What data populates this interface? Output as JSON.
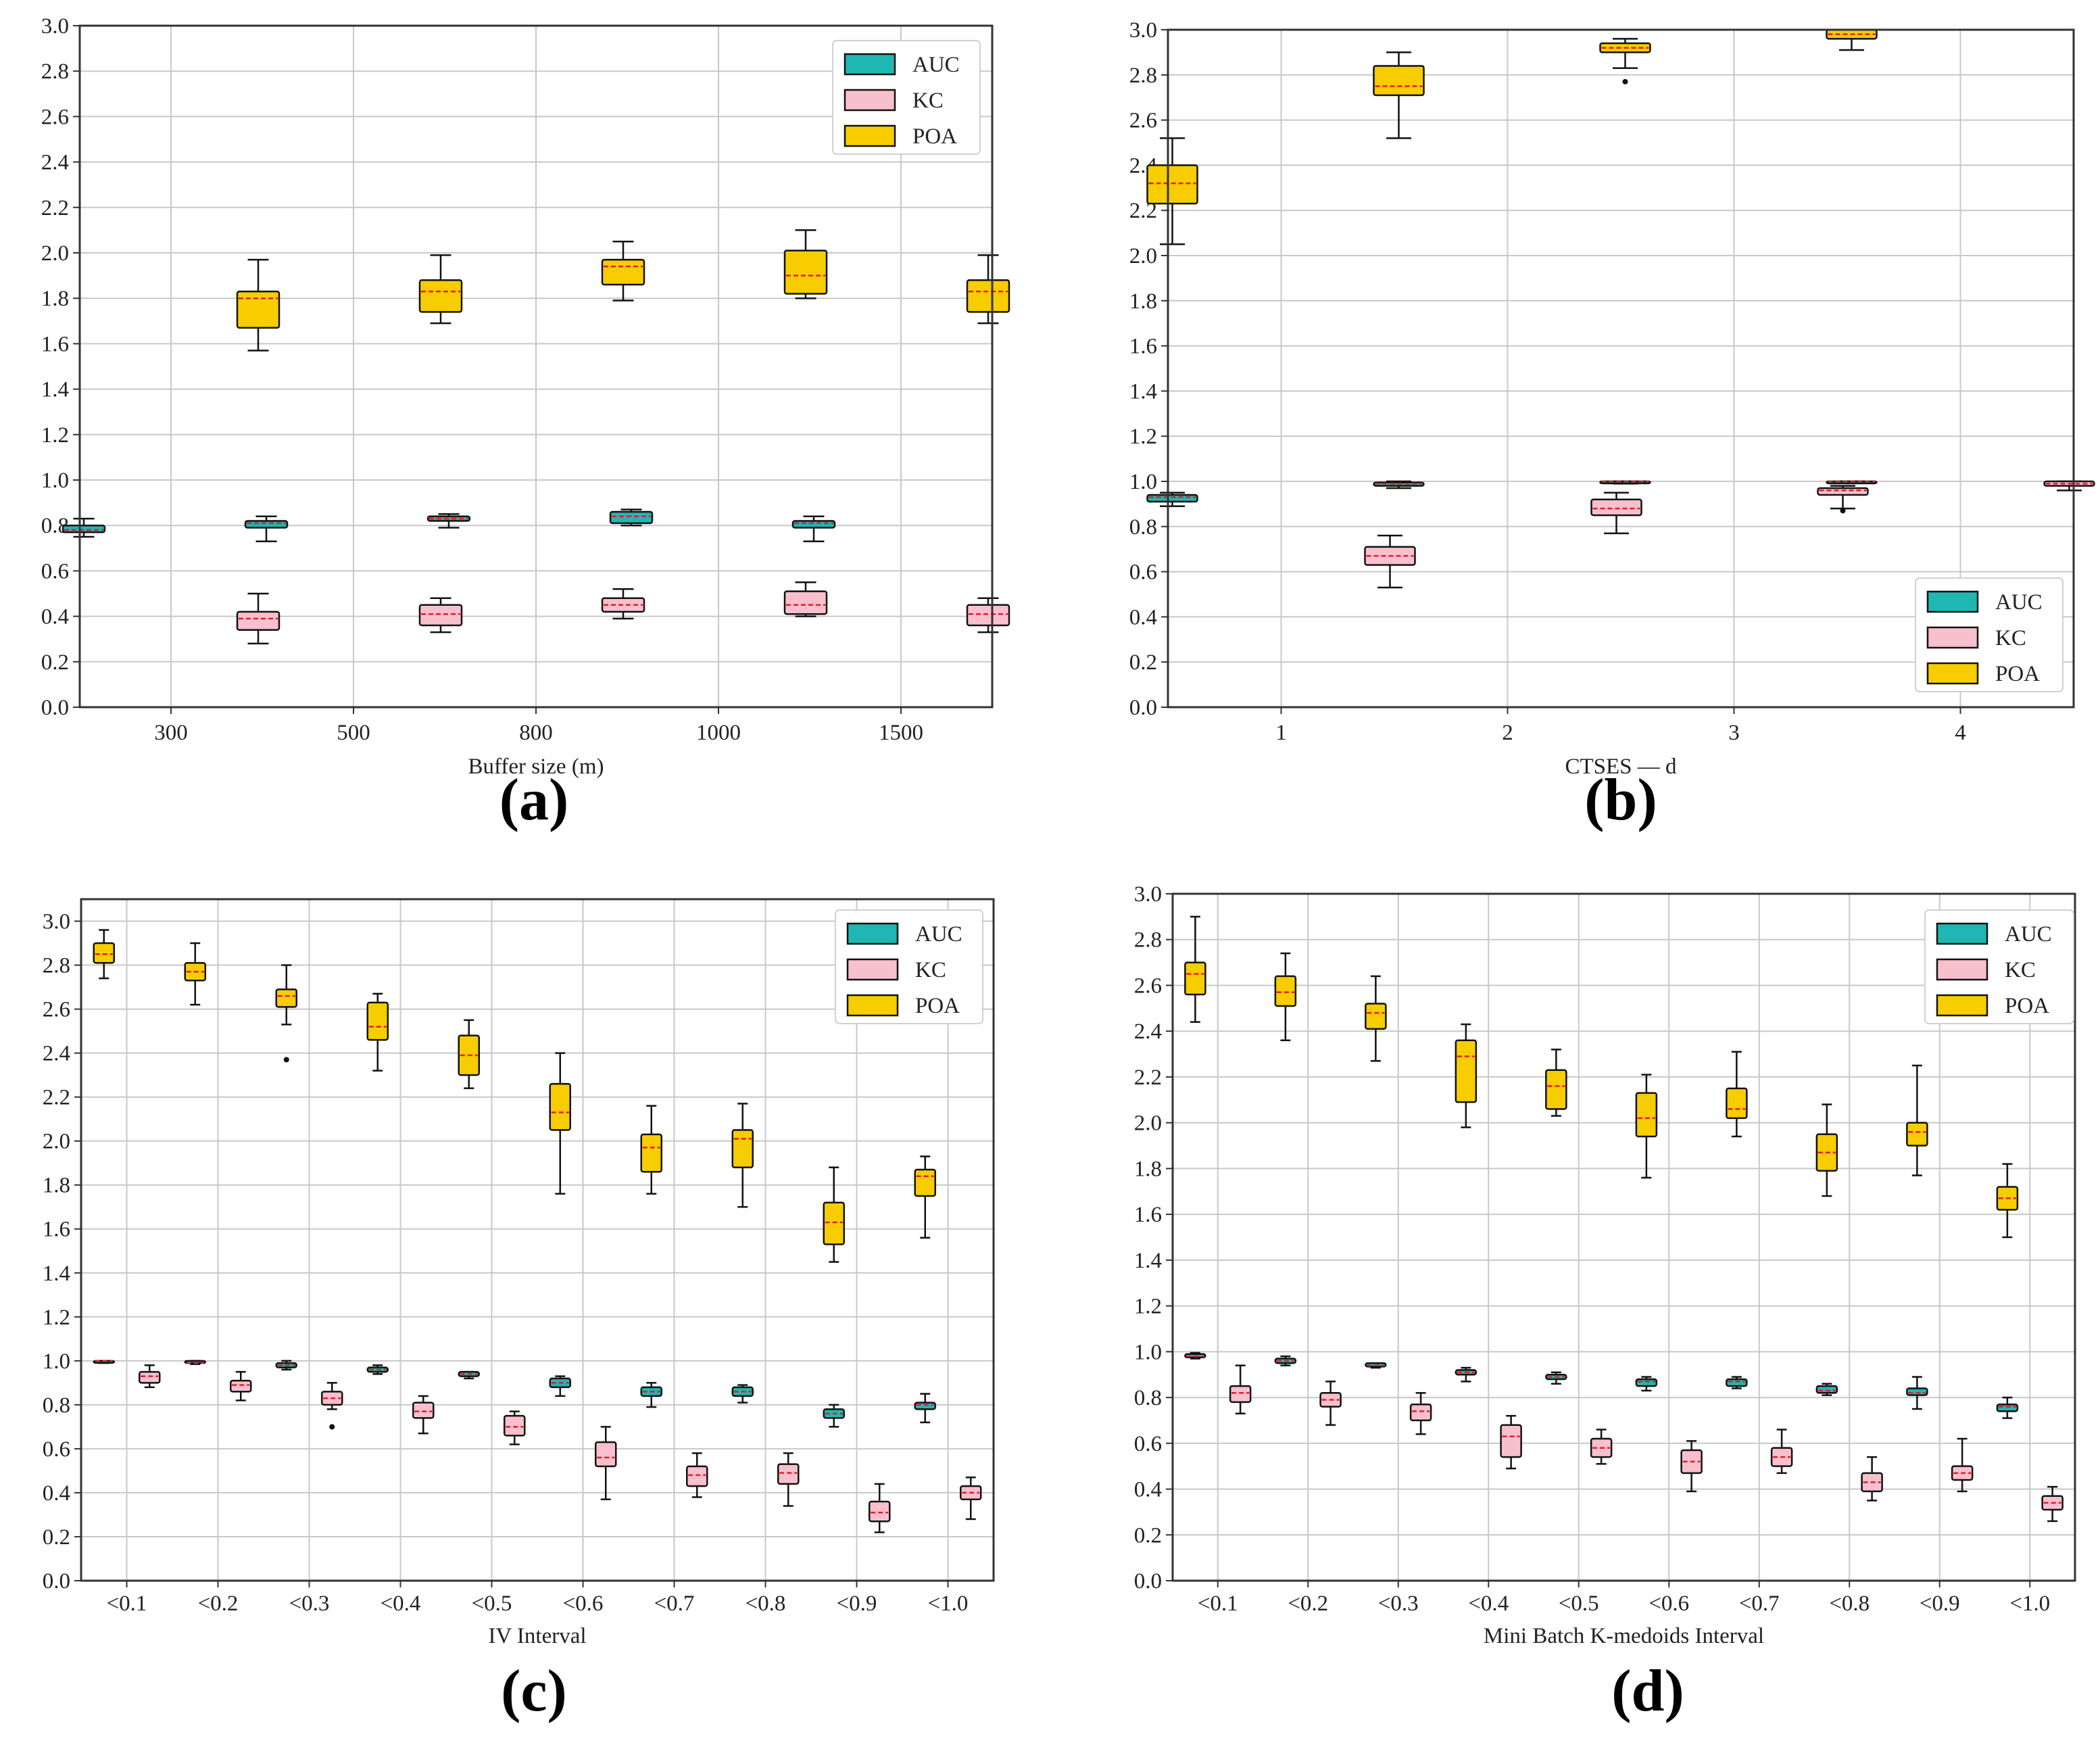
{
  "colors": {
    "AUC": "#1fb7b1",
    "KC": "#f8c0cc",
    "POA": "#f7cd00",
    "median": "#e8182c",
    "grid": "#c8c8c8"
  },
  "chart_data": [
    {
      "panel": "(a)",
      "type": "box",
      "xlabel": "Buffer size  (m)",
      "ylabel": "",
      "ylim": [
        0,
        3.0
      ],
      "yticks": [
        "0.0",
        "0.2",
        "0.4",
        "0.6",
        "0.8",
        "1.0",
        "1.2",
        "1.4",
        "1.6",
        "1.8",
        "2.0",
        "2.2",
        "2.4",
        "2.6",
        "2.8",
        "3.0"
      ],
      "categories": [
        "300",
        "500",
        "800",
        "1000",
        "1500"
      ],
      "grid": true,
      "legend_position": "top-right",
      "legend": [
        "AUC",
        "KC",
        "POA"
      ],
      "series": [
        {
          "name": "AUC",
          "boxes": [
            {
              "lo": 0.75,
              "q1": 0.77,
              "med": 0.78,
              "q3": 0.8,
              "hi": 0.83
            },
            {
              "lo": 0.73,
              "q1": 0.79,
              "med": 0.81,
              "q3": 0.82,
              "hi": 0.84
            },
            {
              "lo": 0.79,
              "q1": 0.82,
              "med": 0.83,
              "q3": 0.84,
              "hi": 0.85
            },
            {
              "lo": 0.8,
              "q1": 0.81,
              "med": 0.84,
              "q3": 0.86,
              "hi": 0.87
            },
            {
              "lo": 0.73,
              "q1": 0.79,
              "med": 0.81,
              "q3": 0.82,
              "hi": 0.84
            }
          ]
        },
        {
          "name": "KC",
          "boxes": [
            {
              "lo": 0.28,
              "q1": 0.34,
              "med": 0.39,
              "q3": 0.42,
              "hi": 0.5
            },
            {
              "lo": 0.33,
              "q1": 0.36,
              "med": 0.41,
              "q3": 0.45,
              "hi": 0.48
            },
            {
              "lo": 0.39,
              "q1": 0.42,
              "med": 0.45,
              "q3": 0.48,
              "hi": 0.52
            },
            {
              "lo": 0.4,
              "q1": 0.41,
              "med": 0.45,
              "q3": 0.51,
              "hi": 0.55
            },
            {
              "lo": 0.33,
              "q1": 0.36,
              "med": 0.41,
              "q3": 0.45,
              "hi": 0.48
            }
          ]
        },
        {
          "name": "POA",
          "boxes": [
            {
              "lo": 1.57,
              "q1": 1.67,
              "med": 1.8,
              "q3": 1.83,
              "hi": 1.97
            },
            {
              "lo": 1.69,
              "q1": 1.74,
              "med": 1.83,
              "q3": 1.88,
              "hi": 1.99
            },
            {
              "lo": 1.79,
              "q1": 1.86,
              "med": 1.94,
              "q3": 1.97,
              "hi": 2.05
            },
            {
              "lo": 1.8,
              "q1": 1.82,
              "med": 1.9,
              "q3": 2.01,
              "hi": 2.1
            },
            {
              "lo": 1.69,
              "q1": 1.74,
              "med": 1.83,
              "q3": 1.88,
              "hi": 1.99
            }
          ]
        }
      ]
    },
    {
      "panel": "(b)",
      "type": "box",
      "xlabel": "CTSES — d",
      "ylabel": "",
      "ylim": [
        0,
        3.0
      ],
      "yticks": [
        "0.0",
        "0.2",
        "0.4",
        "0.6",
        "0.8",
        "1.0",
        "1.2",
        "1.4",
        "1.6",
        "1.8",
        "2.0",
        "2.2",
        "2.4",
        "2.6",
        "2.8",
        "3.0"
      ],
      "categories": [
        "1",
        "2",
        "3",
        "4"
      ],
      "grid": true,
      "legend_position": "bottom-right",
      "legend": [
        "AUC",
        "KC",
        "POA"
      ],
      "series": [
        {
          "name": "AUC",
          "boxes": [
            {
              "lo": 0.89,
              "q1": 0.91,
              "med": 0.93,
              "q3": 0.94,
              "hi": 0.95
            },
            {
              "lo": 0.97,
              "q1": 0.98,
              "med": 0.99,
              "q3": 0.995,
              "hi": 1.0
            },
            {
              "lo": 0.99,
              "q1": 0.995,
              "med": 1.0,
              "q3": 1.0,
              "hi": 1.0
            },
            {
              "lo": 0.995,
              "q1": 1.0,
              "med": 1.0,
              "q3": 1.0,
              "hi": 1.0
            }
          ]
        },
        {
          "name": "KC",
          "boxes": [
            {
              "lo": 0.53,
              "q1": 0.63,
              "med": 0.67,
              "q3": 0.71,
              "hi": 0.76
            },
            {
              "lo": 0.77,
              "q1": 0.85,
              "med": 0.88,
              "q3": 0.92,
              "hi": 0.95
            },
            {
              "lo": 0.88,
              "q1": 0.94,
              "med": 0.96,
              "q3": 0.97,
              "hi": 0.98,
              "outliers": [
                0.87
              ]
            },
            {
              "lo": 0.96,
              "q1": 0.98,
              "med": 0.99,
              "q3": 1.0,
              "hi": 1.0
            }
          ]
        },
        {
          "name": "POA",
          "boxes": [
            {
              "lo": 2.05,
              "q1": 2.23,
              "med": 2.32,
              "q3": 2.4,
              "hi": 2.52
            },
            {
              "lo": 2.52,
              "q1": 2.71,
              "med": 2.75,
              "q3": 2.84,
              "hi": 2.9
            },
            {
              "lo": 2.83,
              "q1": 2.9,
              "med": 2.92,
              "q3": 2.94,
              "hi": 2.96,
              "outliers": [
                2.77
              ]
            },
            {
              "lo": 2.91,
              "q1": 2.96,
              "med": 2.98,
              "q3": 3.0,
              "hi": 3.0
            }
          ]
        }
      ]
    },
    {
      "panel": "(c)",
      "type": "box",
      "xlabel": "IV Interval",
      "ylabel": "",
      "ylim": [
        0,
        3.1
      ],
      "yticks": [
        "0.0",
        "0.2",
        "0.4",
        "0.6",
        "0.8",
        "1.0",
        "1.2",
        "1.4",
        "1.6",
        "1.8",
        "2.0",
        "2.2",
        "2.4",
        "2.6",
        "2.8",
        "3.0"
      ],
      "categories": [
        "<0.1",
        "<0.2",
        "<0.3",
        "<0.4",
        "<0.5",
        "<0.6",
        "<0.7",
        "<0.8",
        "<0.9",
        "<1.0"
      ],
      "grid": true,
      "legend_position": "top-right",
      "legend": [
        "AUC",
        "KC",
        "POA"
      ],
      "series": [
        {
          "name": "AUC",
          "boxes": [
            {
              "lo": 0.99,
              "q1": 0.995,
              "med": 1.0,
              "q3": 1.0,
              "hi": 1.0
            },
            {
              "lo": 0.985,
              "q1": 0.99,
              "med": 0.99,
              "q3": 1.0,
              "hi": 1.0
            },
            {
              "lo": 0.96,
              "q1": 0.97,
              "med": 0.98,
              "q3": 0.99,
              "hi": 1.0
            },
            {
              "lo": 0.94,
              "q1": 0.95,
              "med": 0.96,
              "q3": 0.97,
              "hi": 0.98
            },
            {
              "lo": 0.92,
              "q1": 0.93,
              "med": 0.94,
              "q3": 0.95,
              "hi": 0.95
            },
            {
              "lo": 0.84,
              "q1": 0.88,
              "med": 0.9,
              "q3": 0.92,
              "hi": 0.93
            },
            {
              "lo": 0.79,
              "q1": 0.84,
              "med": 0.86,
              "q3": 0.88,
              "hi": 0.9
            },
            {
              "lo": 0.81,
              "q1": 0.84,
              "med": 0.86,
              "q3": 0.88,
              "hi": 0.89
            },
            {
              "lo": 0.7,
              "q1": 0.74,
              "med": 0.76,
              "q3": 0.78,
              "hi": 0.8
            },
            {
              "lo": 0.72,
              "q1": 0.78,
              "med": 0.8,
              "q3": 0.81,
              "hi": 0.85
            }
          ]
        },
        {
          "name": "KC",
          "boxes": [
            {
              "lo": 0.88,
              "q1": 0.9,
              "med": 0.93,
              "q3": 0.95,
              "hi": 0.98
            },
            {
              "lo": 0.82,
              "q1": 0.86,
              "med": 0.89,
              "q3": 0.91,
              "hi": 0.95
            },
            {
              "lo": 0.78,
              "q1": 0.8,
              "med": 0.83,
              "q3": 0.86,
              "hi": 0.9,
              "outliers": [
                0.7
              ]
            },
            {
              "lo": 0.67,
              "q1": 0.74,
              "med": 0.77,
              "q3": 0.81,
              "hi": 0.84
            },
            {
              "lo": 0.62,
              "q1": 0.66,
              "med": 0.7,
              "q3": 0.75,
              "hi": 0.77
            },
            {
              "lo": 0.37,
              "q1": 0.52,
              "med": 0.56,
              "q3": 0.63,
              "hi": 0.7
            },
            {
              "lo": 0.38,
              "q1": 0.43,
              "med": 0.48,
              "q3": 0.52,
              "hi": 0.58
            },
            {
              "lo": 0.34,
              "q1": 0.44,
              "med": 0.49,
              "q3": 0.53,
              "hi": 0.58
            },
            {
              "lo": 0.22,
              "q1": 0.27,
              "med": 0.31,
              "q3": 0.36,
              "hi": 0.44
            },
            {
              "lo": 0.28,
              "q1": 0.37,
              "med": 0.4,
              "q3": 0.43,
              "hi": 0.47
            }
          ]
        },
        {
          "name": "POA",
          "boxes": [
            {
              "lo": 2.74,
              "q1": 2.81,
              "med": 2.85,
              "q3": 2.9,
              "hi": 2.96
            },
            {
              "lo": 2.62,
              "q1": 2.73,
              "med": 2.77,
              "q3": 2.81,
              "hi": 2.9
            },
            {
              "lo": 2.53,
              "q1": 2.61,
              "med": 2.66,
              "q3": 2.69,
              "hi": 2.8,
              "outliers": [
                2.37
              ]
            },
            {
              "lo": 2.32,
              "q1": 2.46,
              "med": 2.52,
              "q3": 2.63,
              "hi": 2.67
            },
            {
              "lo": 2.24,
              "q1": 2.3,
              "med": 2.39,
              "q3": 2.48,
              "hi": 2.55
            },
            {
              "lo": 1.76,
              "q1": 2.05,
              "med": 2.13,
              "q3": 2.26,
              "hi": 2.4
            },
            {
              "lo": 1.76,
              "q1": 1.86,
              "med": 1.97,
              "q3": 2.03,
              "hi": 2.16
            },
            {
              "lo": 1.7,
              "q1": 1.88,
              "med": 2.01,
              "q3": 2.05,
              "hi": 2.17
            },
            {
              "lo": 1.45,
              "q1": 1.53,
              "med": 1.63,
              "q3": 1.72,
              "hi": 1.88
            },
            {
              "lo": 1.56,
              "q1": 1.75,
              "med": 1.84,
              "q3": 1.87,
              "hi": 1.93
            }
          ]
        }
      ]
    },
    {
      "panel": "(d)",
      "type": "box",
      "xlabel": "Mini Batch K-medoids Interval",
      "ylabel": "",
      "ylim": [
        0,
        3.0
      ],
      "yticks": [
        "0.0",
        "0.2",
        "0.4",
        "0.6",
        "0.8",
        "1.0",
        "1.2",
        "1.4",
        "1.6",
        "1.8",
        "2.0",
        "2.2",
        "2.4",
        "2.6",
        "2.8",
        "3.0"
      ],
      "categories": [
        "<0.1",
        "<0.2",
        "<0.3",
        "<0.4",
        "<0.5",
        "<0.6",
        "<0.7",
        "<0.8",
        "<0.9",
        "<1.0"
      ],
      "grid": true,
      "legend_position": "top-right",
      "legend": [
        "AUC",
        "KC",
        "POA"
      ],
      "series": [
        {
          "name": "AUC",
          "boxes": [
            {
              "lo": 0.97,
              "q1": 0.975,
              "med": 0.98,
              "q3": 0.99,
              "hi": 0.995
            },
            {
              "lo": 0.94,
              "q1": 0.95,
              "med": 0.96,
              "q3": 0.97,
              "hi": 0.98
            },
            {
              "lo": 0.93,
              "q1": 0.935,
              "med": 0.94,
              "q3": 0.95,
              "hi": 0.95
            },
            {
              "lo": 0.87,
              "q1": 0.9,
              "med": 0.91,
              "q3": 0.92,
              "hi": 0.93
            },
            {
              "lo": 0.86,
              "q1": 0.88,
              "med": 0.89,
              "q3": 0.9,
              "hi": 0.91
            },
            {
              "lo": 0.83,
              "q1": 0.85,
              "med": 0.87,
              "q3": 0.88,
              "hi": 0.89
            },
            {
              "lo": 0.84,
              "q1": 0.85,
              "med": 0.87,
              "q3": 0.88,
              "hi": 0.89
            },
            {
              "lo": 0.81,
              "q1": 0.82,
              "med": 0.83,
              "q3": 0.85,
              "hi": 0.86
            },
            {
              "lo": 0.75,
              "q1": 0.81,
              "med": 0.82,
              "q3": 0.84,
              "hi": 0.89
            },
            {
              "lo": 0.71,
              "q1": 0.74,
              "med": 0.76,
              "q3": 0.77,
              "hi": 0.8
            }
          ]
        },
        {
          "name": "KC",
          "boxes": [
            {
              "lo": 0.73,
              "q1": 0.78,
              "med": 0.82,
              "q3": 0.85,
              "hi": 0.94
            },
            {
              "lo": 0.68,
              "q1": 0.76,
              "med": 0.79,
              "q3": 0.82,
              "hi": 0.87
            },
            {
              "lo": 0.64,
              "q1": 0.7,
              "med": 0.74,
              "q3": 0.77,
              "hi": 0.82
            },
            {
              "lo": 0.49,
              "q1": 0.54,
              "med": 0.63,
              "q3": 0.68,
              "hi": 0.72
            },
            {
              "lo": 0.51,
              "q1": 0.54,
              "med": 0.58,
              "q3": 0.62,
              "hi": 0.66
            },
            {
              "lo": 0.39,
              "q1": 0.47,
              "med": 0.52,
              "q3": 0.57,
              "hi": 0.61
            },
            {
              "lo": 0.47,
              "q1": 0.5,
              "med": 0.54,
              "q3": 0.58,
              "hi": 0.66
            },
            {
              "lo": 0.35,
              "q1": 0.39,
              "med": 0.43,
              "q3": 0.47,
              "hi": 0.54
            },
            {
              "lo": 0.39,
              "q1": 0.44,
              "med": 0.47,
              "q3": 0.5,
              "hi": 0.62
            },
            {
              "lo": 0.26,
              "q1": 0.31,
              "med": 0.34,
              "q3": 0.37,
              "hi": 0.41
            }
          ]
        },
        {
          "name": "POA",
          "boxes": [
            {
              "lo": 2.44,
              "q1": 2.56,
              "med": 2.65,
              "q3": 2.7,
              "hi": 2.9
            },
            {
              "lo": 2.36,
              "q1": 2.51,
              "med": 2.57,
              "q3": 2.64,
              "hi": 2.74
            },
            {
              "lo": 2.27,
              "q1": 2.41,
              "med": 2.48,
              "q3": 2.52,
              "hi": 2.64
            },
            {
              "lo": 1.98,
              "q1": 2.09,
              "med": 2.29,
              "q3": 2.36,
              "hi": 2.43
            },
            {
              "lo": 2.03,
              "q1": 2.06,
              "med": 2.16,
              "q3": 2.23,
              "hi": 2.32
            },
            {
              "lo": 1.76,
              "q1": 1.94,
              "med": 2.02,
              "q3": 2.13,
              "hi": 2.21
            },
            {
              "lo": 1.94,
              "q1": 2.02,
              "med": 2.06,
              "q3": 2.15,
              "hi": 2.31
            },
            {
              "lo": 1.68,
              "q1": 1.79,
              "med": 1.87,
              "q3": 1.95,
              "hi": 2.08
            },
            {
              "lo": 1.77,
              "q1": 1.9,
              "med": 1.96,
              "q3": 2.0,
              "hi": 2.25
            },
            {
              "lo": 1.5,
              "q1": 1.62,
              "med": 1.67,
              "q3": 1.72,
              "hi": 1.82
            }
          ]
        }
      ]
    }
  ]
}
